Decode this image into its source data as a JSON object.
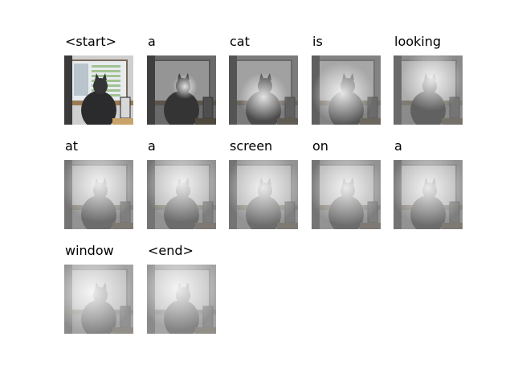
{
  "figure": {
    "words": [
      "<start>",
      "a",
      "cat",
      "is",
      "looking",
      "at",
      "a",
      "screen",
      "on",
      "a",
      "window",
      "<end>"
    ],
    "attention": [
      {
        "kind": "original"
      },
      {
        "kind": "attention",
        "fx": 0.55,
        "fy": 0.45,
        "r": 0.18,
        "base": 0.1
      },
      {
        "kind": "attention",
        "fx": 0.5,
        "fy": 0.6,
        "r": 0.35,
        "base": 0.2
      },
      {
        "kind": "attention",
        "fx": 0.45,
        "fy": 0.55,
        "r": 0.45,
        "base": 0.25
      },
      {
        "kind": "attention",
        "fx": 0.55,
        "fy": 0.35,
        "r": 0.45,
        "base": 0.3
      },
      {
        "kind": "attention",
        "fx": 0.5,
        "fy": 0.35,
        "r": 0.55,
        "base": 0.35
      },
      {
        "kind": "attention",
        "fx": 0.5,
        "fy": 0.35,
        "r": 0.55,
        "base": 0.35
      },
      {
        "kind": "attention",
        "fx": 0.5,
        "fy": 0.4,
        "r": 0.55,
        "base": 0.35
      },
      {
        "kind": "attention",
        "fx": 0.5,
        "fy": 0.4,
        "r": 0.55,
        "base": 0.35
      },
      {
        "kind": "attention",
        "fx": 0.5,
        "fy": 0.4,
        "r": 0.55,
        "base": 0.35
      },
      {
        "kind": "attention",
        "fx": 0.4,
        "fy": 0.4,
        "r": 0.6,
        "base": 0.45
      },
      {
        "kind": "attention",
        "fx": 0.45,
        "fy": 0.35,
        "r": 0.6,
        "base": 0.45
      }
    ]
  }
}
